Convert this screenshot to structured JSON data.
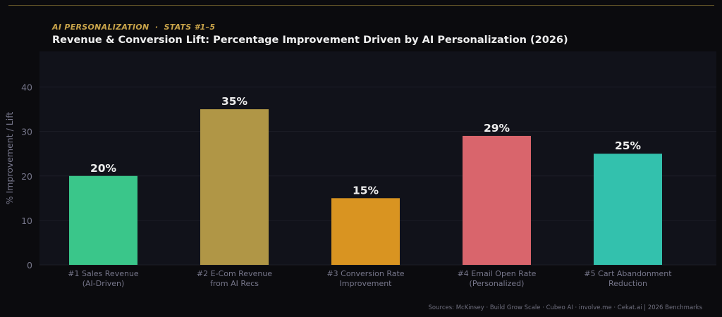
{
  "kicker": "AI PERSONALIZATION  ·  STATS #1–5",
  "title": "Revenue & Conversion Lift: Percentage Improvement Driven by AI Personalization (2026)",
  "source": "Sources: McKinsey · Build Grow Scale · Cubeo AI · involve.me · Cekat.ai  |  2026 Benchmarks",
  "colors": {
    "page_bg": "#0b0b0e",
    "plot_bg": "#11121a",
    "accent": "#c9a44a",
    "axis_text": "#76768a",
    "value_label": "#eeeeee"
  },
  "chart_data": {
    "type": "bar",
    "categories": [
      [
        "#1  Sales Revenue",
        "(AI-Driven)"
      ],
      [
        "#2  E-Com Revenue",
        "from AI Recs"
      ],
      [
        "#3  Conversion Rate",
        "Improvement"
      ],
      [
        "#4  Email Open Rate",
        "(Personalized)"
      ],
      [
        "#5  Cart Abandonment",
        "Reduction"
      ]
    ],
    "values": [
      20,
      35,
      15,
      29,
      25
    ],
    "value_labels": [
      "20%",
      "35%",
      "15%",
      "29%",
      "25%"
    ],
    "bar_colors": [
      "#3ac68a",
      "#b09646",
      "#d99421",
      "#d9656c",
      "#33c1ad"
    ],
    "ylabel": "% Improvement / Lift",
    "ylim": [
      0,
      48
    ],
    "yticks": [
      0,
      10,
      20,
      30,
      40
    ],
    "grid": true
  }
}
